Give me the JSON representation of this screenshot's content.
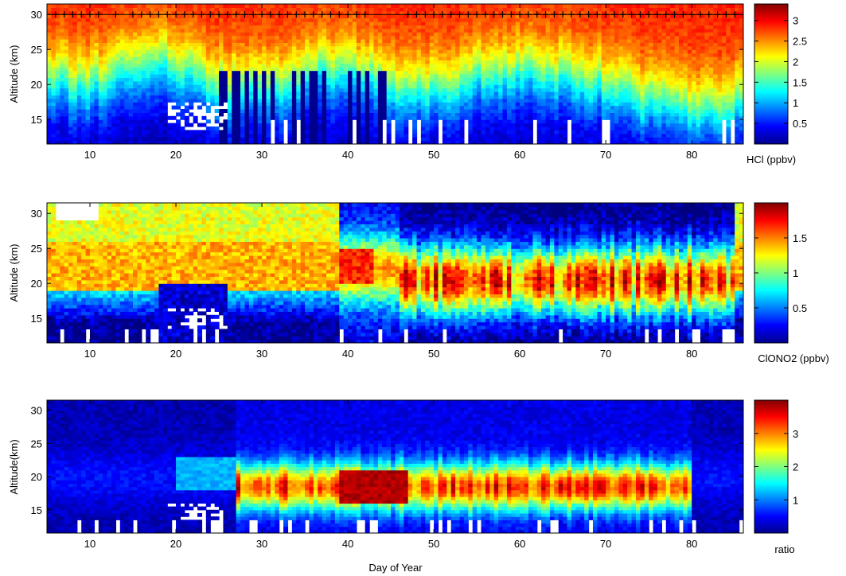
{
  "chart_data": [
    {
      "type": "heatmap",
      "title": "",
      "xlabel": "",
      "ylabel": "Altitude (km)",
      "xlim": [
        5,
        86
      ],
      "ylim": [
        11.5,
        31.5
      ],
      "xticks": [
        "10",
        "20",
        "30",
        "40",
        "50",
        "60",
        "70",
        "80"
      ],
      "yticks": [
        "15",
        "20",
        "25",
        "30"
      ],
      "colorbar": {
        "label": "HCl (ppbv)",
        "range": [
          0,
          3.4
        ],
        "ticks": [
          "0.5",
          "1",
          "1.5",
          "2",
          "2.5",
          "3"
        ]
      },
      "features": {
        "transition_altitude_km": [
          21.0,
          20.5,
          20.0,
          20.5,
          21.5,
          22.5,
          23.0,
          22.5,
          21.5,
          20.5,
          19.5,
          19.0,
          19.5,
          20.0,
          21.0,
          22.0,
          22.5,
          21.5,
          20.5,
          20.0,
          19.5,
          19.5,
          20.0,
          21.0,
          21.5,
          22.0,
          22.0,
          21.5,
          21.5,
          21.0,
          20.5,
          19.5,
          18.5,
          17.5,
          17.0,
          16.5,
          16.5,
          17.0,
          17.5
        ],
        "marker_days": [
          6,
          7,
          8,
          9,
          10,
          11,
          13,
          15,
          16,
          17,
          18,
          19,
          20,
          21,
          22,
          23,
          24,
          25,
          26,
          27,
          28,
          29,
          30,
          31,
          32,
          33,
          34,
          35,
          36,
          37,
          38,
          39,
          40,
          41,
          42,
          47,
          48,
          49,
          50,
          51,
          52,
          53,
          54,
          55,
          56,
          57,
          58,
          59,
          60,
          61,
          62,
          63,
          64,
          65,
          66,
          67,
          68,
          69,
          70,
          71,
          72,
          73,
          74,
          75,
          76,
          77,
          78,
          79,
          80,
          81,
          82,
          83,
          84,
          85
        ],
        "marker_altitude_km": 30
      }
    },
    {
      "type": "heatmap",
      "title": "",
      "xlabel": "",
      "ylabel": "Altitude (km)",
      "xlim": [
        5,
        86
      ],
      "ylim": [
        11.5,
        31.5
      ],
      "xticks": [
        "10",
        "20",
        "30",
        "40",
        "50",
        "60",
        "70",
        "80"
      ],
      "yticks": [
        "15",
        "20",
        "25",
        "30"
      ],
      "colorbar": {
        "label": "ClONO2 (ppbv)",
        "range": [
          0,
          2.0
        ],
        "ticks": [
          "0.5",
          "1",
          "1.5"
        ]
      },
      "features": {
        "enhanced_layer_days": [
          46,
          82
        ],
        "enhanced_layer_altitude_km": [
          17,
          24
        ],
        "peak_value_ppbv": 1.9
      }
    },
    {
      "type": "heatmap",
      "title": "",
      "xlabel": "Day of Year",
      "ylabel": "Altitude(km)",
      "xlim": [
        5,
        86
      ],
      "ylim": [
        11.5,
        31.5
      ],
      "xticks": [
        "10",
        "20",
        "30",
        "40",
        "50",
        "60",
        "70",
        "80"
      ],
      "yticks": [
        "15",
        "20",
        "25",
        "30"
      ],
      "colorbar": {
        "label": "ratio",
        "range": [
          0,
          4.0
        ],
        "ticks": [
          "1",
          "2",
          "3"
        ]
      },
      "features": {
        "enhanced_layer_days": [
          27,
          80
        ],
        "enhanced_layer_altitude_km": [
          15,
          22
        ],
        "peak_ratio": 3.9
      }
    }
  ]
}
